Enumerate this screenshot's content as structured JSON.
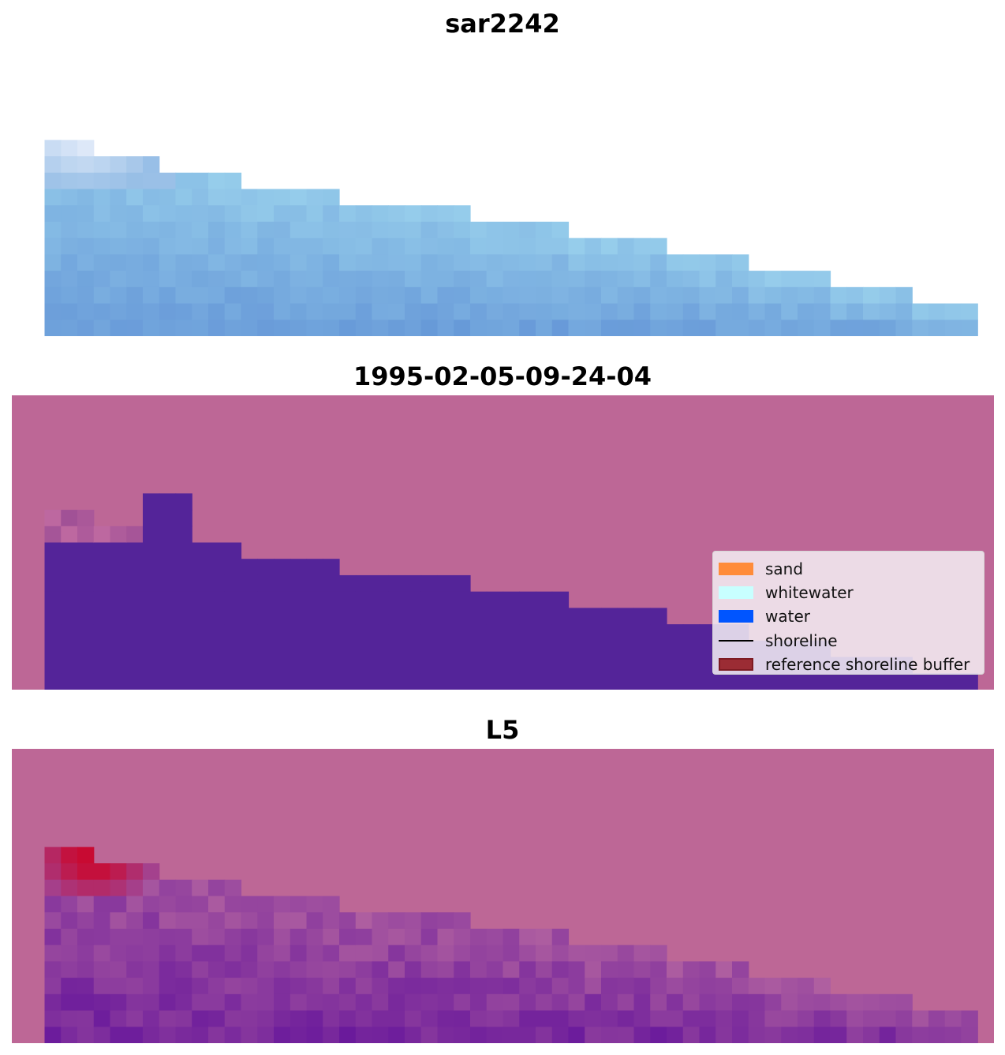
{
  "panels": [
    {
      "title": "sar2242"
    },
    {
      "title": "1995-02-05-09-24-04"
    },
    {
      "title": "L5"
    }
  ],
  "legend": {
    "items": [
      {
        "label": "sand",
        "color": "#ff8c3a",
        "kind": "patch"
      },
      {
        "label": "whitewater",
        "color": "#c8ffff",
        "kind": "patch"
      },
      {
        "label": "water",
        "color": "#0055ff",
        "kind": "patch"
      },
      {
        "label": "shoreline",
        "color": "#000000",
        "kind": "line"
      },
      {
        "label": "reference shoreline buffer",
        "color": "#9b2c34",
        "kind": "patch"
      }
    ]
  },
  "colors": {
    "background_magenta": "#bd6796",
    "water_class": "#542499"
  }
}
